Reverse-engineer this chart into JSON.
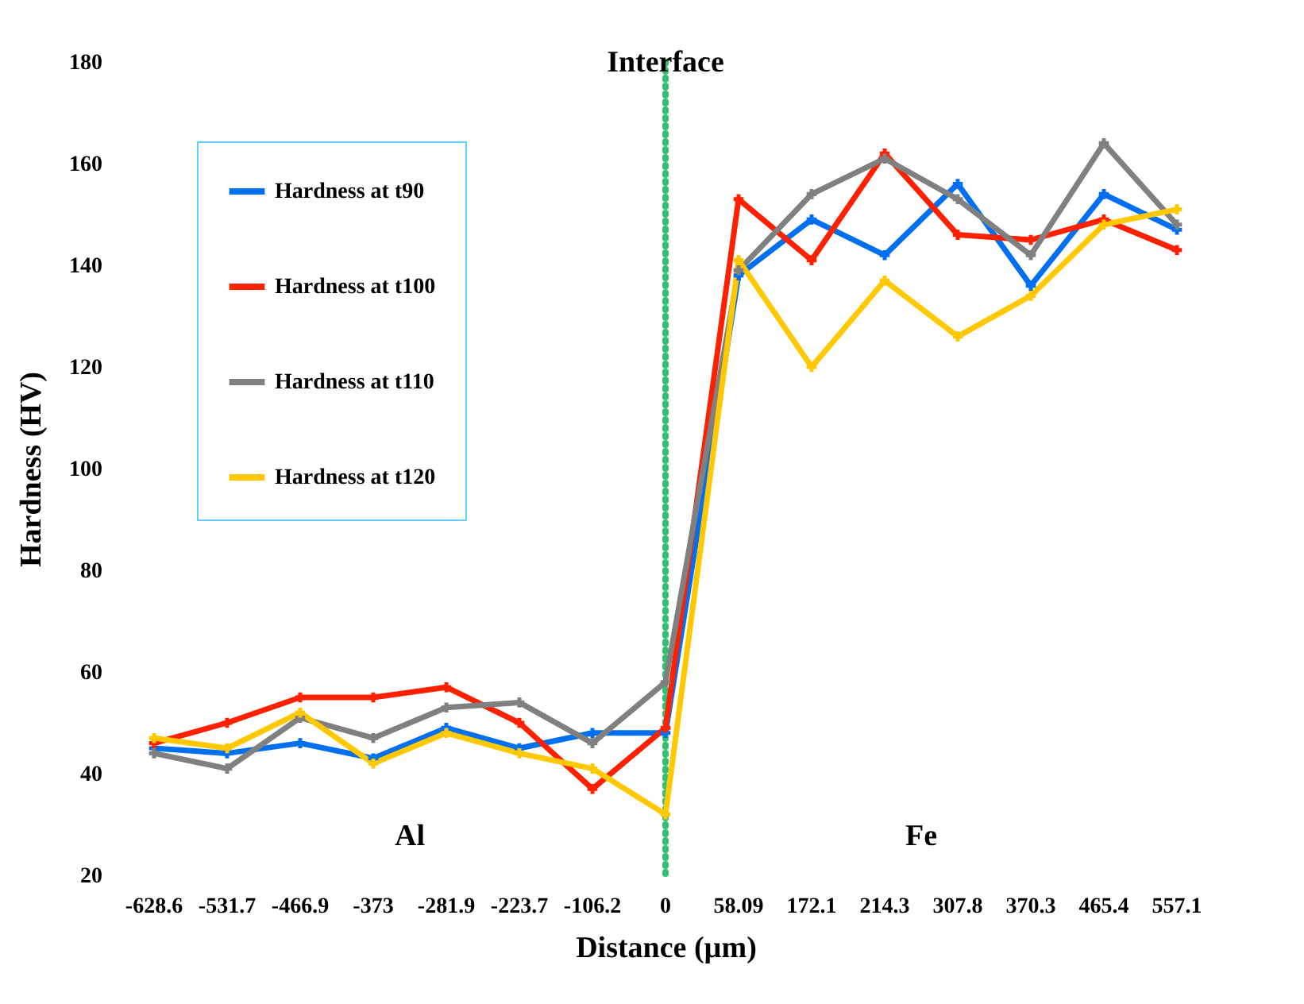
{
  "chart_data": {
    "type": "line",
    "xlabel": "Distance (µm)",
    "ylabel": "Hardness (HV)",
    "categories": [
      "-628.6",
      "-531.7",
      "-466.9",
      "-373",
      "-281.9",
      "-223.7",
      "-106.2",
      "0",
      "58.09",
      "172.1",
      "214.3",
      "307.8",
      "370.3",
      "465.4",
      "557.1"
    ],
    "series": [
      {
        "name": "Hardness at t90",
        "color": "#0070f0",
        "values": [
          45,
          44,
          46,
          43,
          49,
          45,
          48,
          48,
          138,
          149,
          142,
          156,
          136,
          154,
          147
        ]
      },
      {
        "name": "Hardness at t100",
        "color": "#ff2000",
        "values": [
          46,
          50,
          55,
          55,
          57,
          50,
          37,
          49,
          153,
          141,
          162,
          146,
          145,
          149,
          143
        ]
      },
      {
        "name": "Hardness at t110",
        "color": "#808080",
        "values": [
          44,
          41,
          51,
          47,
          53,
          54,
          46,
          58,
          139,
          154,
          161,
          153,
          142,
          164,
          148
        ]
      },
      {
        "name": "Hardness at t120",
        "color": "#ffc800",
        "values": [
          47,
          45,
          52,
          42,
          48,
          44,
          41,
          32,
          141,
          120,
          137,
          126,
          134,
          148,
          151
        ]
      }
    ],
    "ylim": [
      20,
      180
    ],
    "yticks": [
      20,
      40,
      60,
      80,
      100,
      120,
      140,
      160,
      180
    ],
    "ref_lines": [
      {
        "axis": "x",
        "value": "0",
        "label": "Interface",
        "color": "#00b050",
        "line_style": "dotted"
      }
    ],
    "annotations": [
      "Al",
      "Fe"
    ],
    "legend": "top left",
    "marker": "cross",
    "line_style": "solid",
    "grid": false
  }
}
